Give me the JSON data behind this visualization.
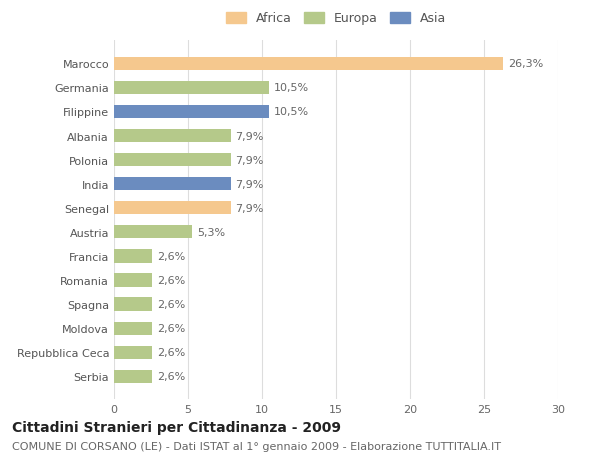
{
  "countries": [
    "Marocco",
    "Germania",
    "Filippine",
    "Albania",
    "Polonia",
    "India",
    "Senegal",
    "Austria",
    "Francia",
    "Romania",
    "Spagna",
    "Moldova",
    "Repubblica Ceca",
    "Serbia"
  ],
  "values": [
    26.3,
    10.5,
    10.5,
    7.9,
    7.9,
    7.9,
    7.9,
    5.3,
    2.6,
    2.6,
    2.6,
    2.6,
    2.6,
    2.6
  ],
  "labels": [
    "26,3%",
    "10,5%",
    "10,5%",
    "7,9%",
    "7,9%",
    "7,9%",
    "7,9%",
    "5,3%",
    "2,6%",
    "2,6%",
    "2,6%",
    "2,6%",
    "2,6%",
    "2,6%"
  ],
  "colors": [
    "#f5c88e",
    "#b5c98a",
    "#6b8cbf",
    "#b5c98a",
    "#b5c98a",
    "#6b8cbf",
    "#f5c88e",
    "#b5c98a",
    "#b5c98a",
    "#b5c98a",
    "#b5c98a",
    "#b5c98a",
    "#b5c98a",
    "#b5c98a"
  ],
  "continent": [
    "Africa",
    "Europa",
    "Asia",
    "Europa",
    "Europa",
    "Asia",
    "Africa",
    "Europa",
    "Europa",
    "Europa",
    "Europa",
    "Europa",
    "Europa",
    "Europa"
  ],
  "legend_labels": [
    "Africa",
    "Europa",
    "Asia"
  ],
  "legend_colors": [
    "#f5c88e",
    "#b5c98a",
    "#6b8cbf"
  ],
  "xlim": [
    0,
    30
  ],
  "xticks": [
    0,
    5,
    10,
    15,
    20,
    25,
    30
  ],
  "title_bold": "Cittadini Stranieri per Cittadinanza - 2009",
  "subtitle": "COMUNE DI CORSANO (LE) - Dati ISTAT al 1° gennaio 2009 - Elaborazione TUTTITALIA.IT",
  "bg_color": "#ffffff",
  "bar_height": 0.55,
  "label_fontsize": 8,
  "tick_fontsize": 8,
  "legend_fontsize": 9,
  "title_fontsize": 10,
  "subtitle_fontsize": 8
}
